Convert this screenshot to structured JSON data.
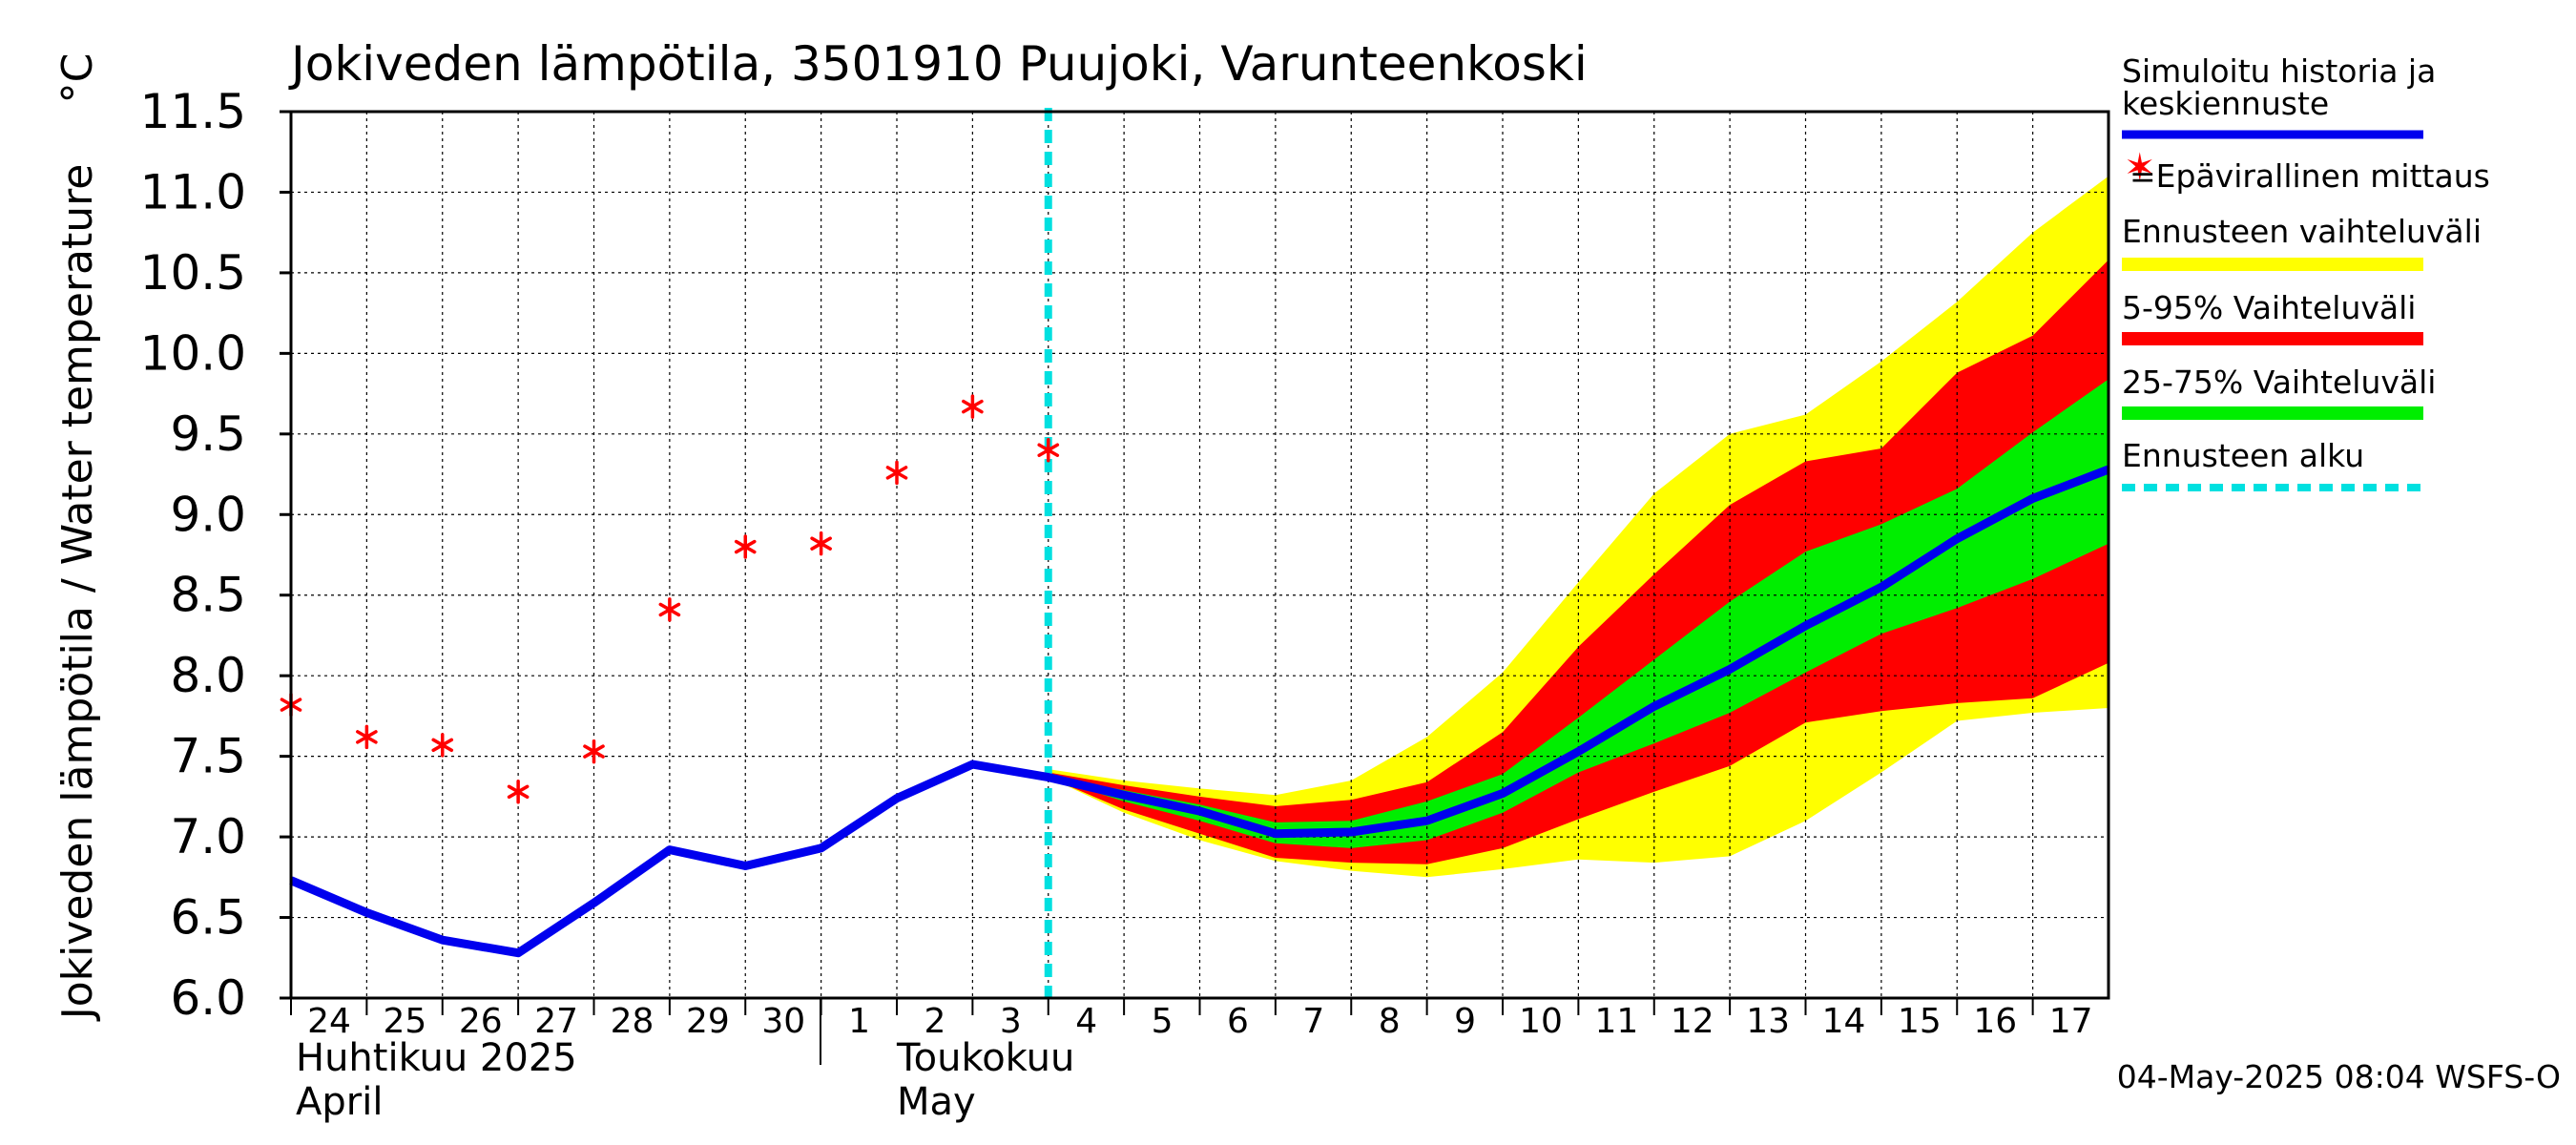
{
  "chart_data": {
    "type": "line",
    "title": "Jokiveden lämpötila, 3501910 Puujoki, Varunteenkoski",
    "ylabel": "Jokiveden lämpötila / Water temperature",
    "yunit": "°C",
    "ylim": [
      6.0,
      11.5
    ],
    "yticks": [
      "6.0",
      "6.5",
      "7.0",
      "7.5",
      "8.0",
      "8.5",
      "9.0",
      "9.5",
      "10.0",
      "10.5",
      "11.0",
      "11.5"
    ],
    "xlim": [
      24,
      48
    ],
    "xtick_labels": [
      "24",
      "25",
      "26",
      "27",
      "28",
      "29",
      "30",
      "1",
      "2",
      "3",
      "4",
      "5",
      "6",
      "7",
      "8",
      "9",
      "10",
      "11",
      "12",
      "13",
      "14",
      "15",
      "16",
      "17"
    ],
    "month_labels": {
      "april_fi": "Huhtikuu  2025",
      "april_en": "April",
      "may_fi": "Toukokuu",
      "may_en": "May"
    },
    "grid": true,
    "forecast_start_x": 34,
    "history": {
      "name": "Simuloitu historia ja keskiennuste",
      "x": [
        24,
        25,
        26,
        27,
        28,
        29,
        30,
        31,
        32,
        33,
        34,
        35,
        36,
        37,
        38,
        39,
        40,
        41,
        42,
        43,
        44,
        45,
        46,
        47,
        48
      ],
      "y": [
        6.73,
        6.53,
        6.36,
        6.28,
        6.59,
        6.92,
        6.82,
        6.93,
        7.24,
        7.45,
        7.37,
        7.26,
        7.16,
        7.02,
        7.03,
        7.1,
        7.27,
        7.53,
        7.81,
        8.04,
        8.31,
        8.55,
        8.85,
        9.1,
        9.28
      ]
    },
    "observations": {
      "name": "=Epävirallinen mittaus",
      "x": [
        24,
        25,
        26,
        27,
        28,
        29,
        30,
        31,
        32,
        33,
        34
      ],
      "y": [
        7.82,
        7.62,
        7.57,
        7.28,
        7.53,
        8.41,
        8.8,
        8.82,
        9.26,
        9.67,
        9.4
      ]
    },
    "bands": {
      "x": [
        34,
        35,
        36,
        37,
        38,
        39,
        40,
        41,
        42,
        43,
        44,
        45,
        46,
        47,
        48
      ],
      "yellow": {
        "name": "Ennusteen vaihteluväli",
        "low": [
          7.37,
          7.15,
          6.98,
          6.85,
          6.79,
          6.75,
          6.8,
          6.86,
          6.84,
          6.88,
          7.1,
          7.4,
          7.72,
          7.77,
          7.8
        ],
        "high": [
          7.42,
          7.35,
          7.3,
          7.26,
          7.35,
          7.62,
          8.02,
          8.58,
          9.13,
          9.5,
          9.62,
          9.95,
          10.32,
          10.75,
          11.1
        ]
      },
      "red": {
        "name": "5-95% Vaihteluväli",
        "low": [
          7.37,
          7.17,
          7.02,
          6.87,
          6.84,
          6.83,
          6.93,
          7.11,
          7.28,
          7.44,
          7.71,
          7.78,
          7.83,
          7.86,
          8.08
        ],
        "high": [
          7.4,
          7.32,
          7.25,
          7.19,
          7.23,
          7.34,
          7.65,
          8.18,
          8.63,
          9.06,
          9.33,
          9.41,
          9.88,
          10.11,
          10.58
        ]
      },
      "green": {
        "name": "25-75% Vaihteluväli",
        "low": [
          7.37,
          7.22,
          7.1,
          6.96,
          6.93,
          6.98,
          7.15,
          7.4,
          7.58,
          7.77,
          8.02,
          8.26,
          8.42,
          8.6,
          8.82
        ],
        "high": [
          7.38,
          7.29,
          7.2,
          7.09,
          7.1,
          7.22,
          7.39,
          7.74,
          8.1,
          8.46,
          8.77,
          8.94,
          9.16,
          9.51,
          9.84
        ]
      }
    },
    "legend": {
      "position": "right",
      "history_l1": "Simuloitu historia ja",
      "history_l2": "keskiennuste",
      "observation": "=Epävirallinen mittaus",
      "forecast_range": "Ennusteen vaihteluväli",
      "p5_95": "5-95% Vaihteluväli",
      "p25_75": "25-75% Vaihteluväli",
      "forecast_start": "Ennusteen alku"
    },
    "timestamp": "04-May-2025 08:04 WSFS-O",
    "colors": {
      "history": "#0000ee",
      "observation": "#ff0000",
      "yellow": "#ffff00",
      "red": "#ff0000",
      "green": "#00ee00",
      "forecast_start": "#00e0e0",
      "grid": "#000000"
    }
  }
}
